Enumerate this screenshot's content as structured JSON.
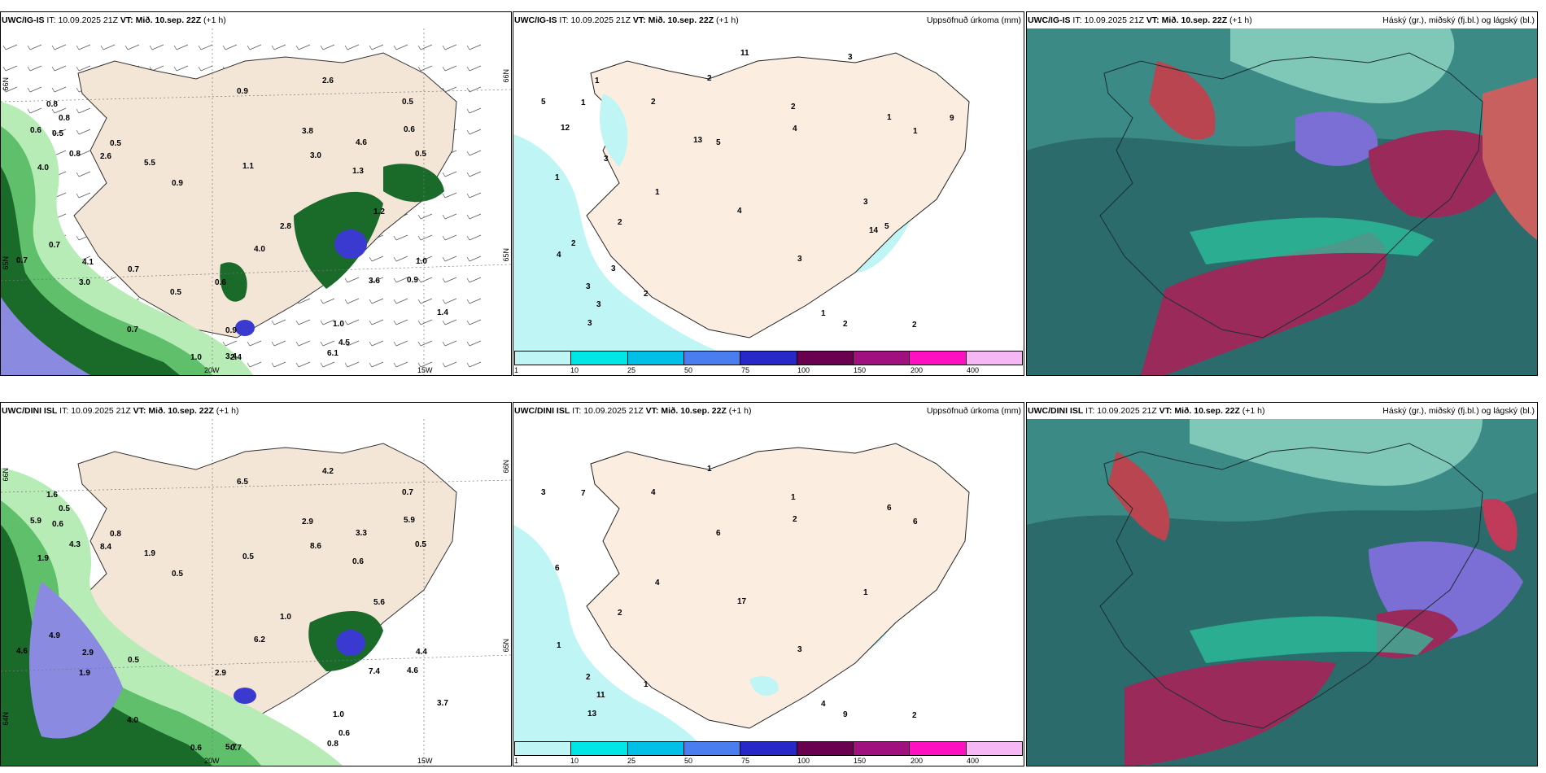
{
  "colors": {
    "land": "#f5ebdf",
    "rain1": "#bff5f5",
    "rain2": "#00e5e5",
    "teal_dark": "#2b6b6b",
    "teal_mid": "#2f8e8e",
    "cloud_high": "#7b6fd6",
    "cloud_mid": "#9a2a5a",
    "green_dark": "#1a6b2a",
    "green_light": "#b7ecb7",
    "blue": "#6a6ad8"
  },
  "panels": [
    {
      "model": "UWC/IG-IS",
      "it_label": "IT:",
      "it": "10.09.2025 21Z",
      "vt_label": "VT: Mið. 10.sep. 22Z",
      "lead": "(+1 h)",
      "right_title": ""
    },
    {
      "model": "UWC/IG-IS",
      "it_label": "IT:",
      "it": "10.09.2025 21Z",
      "vt_label": "VT: Mið. 10.sep. 22Z",
      "lead": "(+1 h)",
      "right_title": "Uppsöfnuð úrkoma (mm)"
    },
    {
      "model": "UWC/IG-IS",
      "it_label": "IT:",
      "it": "10.09.2025 21Z",
      "vt_label": "VT: Mið. 10.sep. 22Z",
      "lead": "(+1 h)",
      "right_title": "Háský (gr.), miðský (fj.bl.) og lágský (bl.)"
    },
    {
      "model": "UWC/DINI ISL",
      "it_label": "IT:",
      "it": "10.09.2025 21Z",
      "vt_label": "VT: Mið. 10.sep. 22Z",
      "lead": "(+1 h)",
      "right_title": ""
    },
    {
      "model": "UWC/DINI ISL",
      "it_label": "IT:",
      "it": "10.09.2025 21Z",
      "vt_label": "VT: Mið. 10.sep. 22Z",
      "lead": "(+1 h)",
      "right_title": "Uppsöfnuð úrkoma (mm)"
    },
    {
      "model": "UWC/DINI ISL",
      "it_label": "IT:",
      "it": "10.09.2025 21Z",
      "vt_label": "VT: Mið. 10.sep. 22Z",
      "lead": "(+1 h)",
      "right_title": "Háský (gr.), miðský (fj.bl.) og lágský (bl.)"
    }
  ],
  "axes": {
    "lon_20": "20W",
    "lon_15": "15W",
    "lat_66": "66N",
    "lat_65": "65N",
    "lat_64": "64N"
  },
  "colorbar": {
    "labels": [
      "1",
      "10",
      "25",
      "50",
      "75",
      "100",
      "150",
      "200",
      "400"
    ],
    "colors": [
      "#bff5f5",
      "#00e5e5",
      "#00c0e8",
      "#4a7ef0",
      "#2828c8",
      "#6a0050",
      "#a0107e",
      "#ff10c0",
      "#f5b8f5"
    ]
  },
  "precip_labels_top": [
    "0.8",
    "0.5",
    "0.5",
    "1.1",
    "1.3",
    "0.9",
    "1.0",
    "0.6",
    "1.2",
    "1.0",
    "0.8",
    "0.9",
    "0.7",
    "0.9",
    "0.6",
    "4.0",
    "3.0",
    "3.6",
    "2.6",
    "1.4",
    "2.6",
    "3.8",
    "3.0",
    "4.0",
    "2.8",
    "4.5",
    "4.6",
    "4.1",
    "5.5",
    "0.7",
    "0.7",
    "0.5",
    "2.4",
    "1.0",
    "3.4",
    "6.1",
    "0.7",
    "0.5",
    "0.8",
    "0.6",
    "0.5",
    "0.9"
  ],
  "precip_labels_bottom": [
    "0.5",
    "0.6",
    "0.7",
    "0.5",
    "0.6",
    "0.5",
    "1.0",
    "5.9",
    "5.6",
    "4.4",
    "4.3",
    "4.6",
    "4.9",
    "6.5",
    "5.9",
    "6.2",
    "8.6",
    "7.4",
    "4.2",
    "3.7",
    "8.4",
    "2.9",
    "1.9",
    "1.9",
    "1.0",
    "0.6",
    "3.3",
    "2.9",
    "1.9",
    "0.5",
    "4.6",
    "0.8",
    "0.7",
    "0.6",
    "5.7",
    "0.8",
    "4.0",
    "0.5",
    "1.6",
    "2.9"
  ],
  "accum_labels_top": [
    "2",
    "2",
    "1",
    "2",
    "2",
    "1",
    "1",
    "1",
    "1",
    "1",
    "2",
    "2",
    "3",
    "3",
    "4",
    "2",
    "4",
    "5",
    "3",
    "5",
    "3",
    "4",
    "3",
    "3",
    "3",
    "2",
    "9",
    "12",
    "14",
    "13",
    "3",
    "5",
    "11",
    "1"
  ],
  "accum_labels_bottom": [
    "1",
    "1",
    "4",
    "2",
    "1",
    "6",
    "4",
    "7",
    "6",
    "6",
    "4",
    "9",
    "3",
    "2",
    "1",
    "2",
    "17",
    "6",
    "11",
    "3",
    "13",
    "2",
    "1"
  ]
}
